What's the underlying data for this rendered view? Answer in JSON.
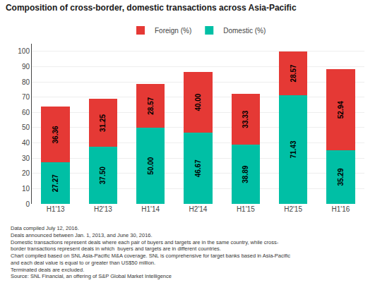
{
  "chart_data": {
    "type": "bar",
    "title": "Composition of cross-border, domestic transactions across Asia-Pacific",
    "categories": [
      "H1'13",
      "H2'13",
      "H1'14",
      "H2'14",
      "H1'15",
      "H2'15",
      "H1'16"
    ],
    "series": [
      {
        "name": "Domestic (%)",
        "color": "#00BFA5",
        "values": [
          27.27,
          37.5,
          50.0,
          46.67,
          38.89,
          71.43,
          35.29
        ],
        "value_labels": [
          "27.27",
          "37.50",
          "50.00",
          "46.67",
          "38.89",
          "71.43",
          "35.29"
        ]
      },
      {
        "name": "Foreign (%)",
        "color": "#E53935",
        "values": [
          36.36,
          31.25,
          28.57,
          40.0,
          33.33,
          28.57,
          52.94
        ],
        "value_labels": [
          "36.36",
          "31.25",
          "28.57",
          "40.00",
          "33.33",
          "28.57",
          "52.94"
        ]
      }
    ],
    "stacked": true,
    "data_labels": true,
    "ylim": [
      0,
      105
    ],
    "yticks": [
      0,
      10,
      20,
      30,
      40,
      50,
      60,
      70,
      80,
      90,
      100
    ],
    "grid": true,
    "annotations": [
      "Data compiled July 12, 2016.",
      "Deals announced between Jan. 1, 2013, and June 30, 2016.",
      "Domestic transactions represent deals where each pair of buyers and targets are in the same country, while cross-",
      "border transactions represent deals in which  buyers and targets are in different countries.",
      "Chart compiled based on SNL Asia-Pacific M&A coverage. SNL is comprehensive for target banks based in Asia-Pacific",
      "and each deal value is equal to or greater than US$50 million.",
      "Terminated deals are excluded.",
      "Source: SNL Financial, an offering of S&P Global Market Intelligence"
    ]
  }
}
